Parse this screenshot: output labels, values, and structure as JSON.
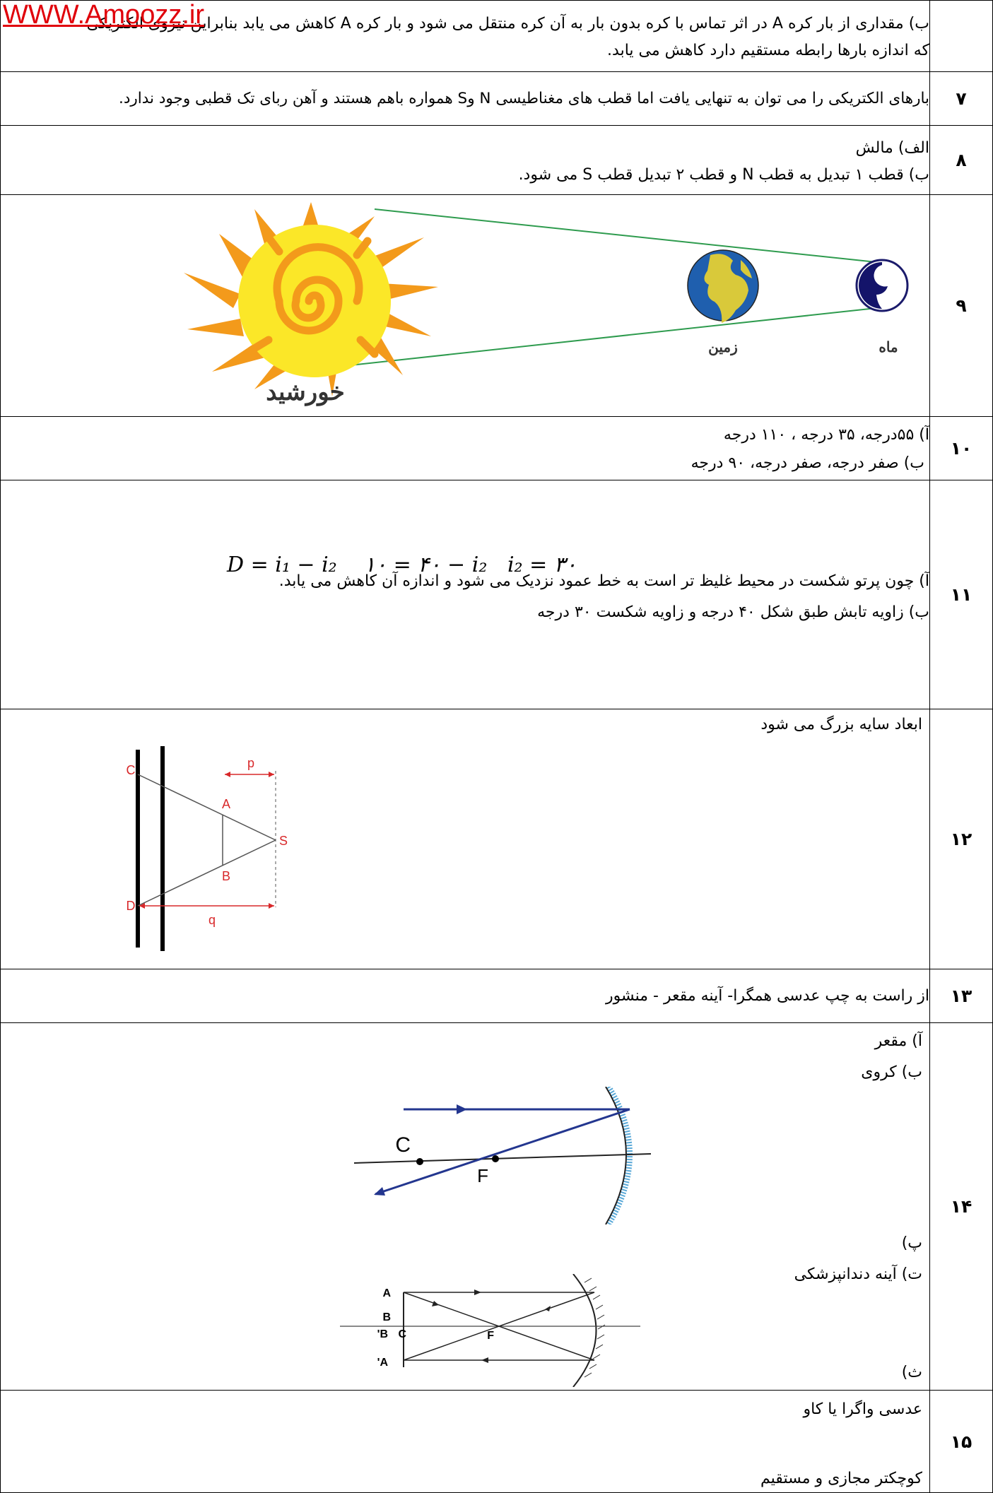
{
  "watermark": "WWW.Amoozz.ir",
  "rows": [
    {
      "num": "",
      "lines": [
        "ب) مقداری از بار کره A در اثر تماس با کره بدون بار به آن کره منتقل می شود و بار کره A کاهش می یابد بنابراین نیروی الکتریکی",
        "که اندازه بارها رابطه مستقیم دارد کاهش می یابد."
      ]
    },
    {
      "num": "۷",
      "lines": [
        "بارهای الکتریکی را می توان به تنهایی یافت اما قطب های مغناطیسی N وS  همواره باهم هستند و آهن ربای تک قطبی وجود ندارد."
      ]
    },
    {
      "num": "۸",
      "lines": [
        "الف) مالش",
        "ب) قطب ۱ تبدیل به قطب N و قطب ۲ تبدیل قطب S می شود."
      ]
    },
    {
      "num": "۹",
      "labels": {
        "sun": "خورشید",
        "earth": "زمین",
        "moon": "ماه"
      }
    },
    {
      "num": "۱۰",
      "lines": [
        "آ) ۵۵درجه، ۳۵ درجه ، ۱۱۰ درجه",
        " ب) صفر درجه، صفر درجه، ۹۰ درجه"
      ]
    },
    {
      "num": "۱۱",
      "lines": [
        "آ) چون پرتو شکست در محیط غلیظ تر است به خط عمود نزدیک می شود و اندازه آن کاهش می یابد.",
        "ب) زاویه تابش طبق شکل ۴۰ درجه و زاویه شکست ۳۰ درجه"
      ],
      "formula": "D = i₁ − i₂    ۱۰ = ۴۰ − i₂   i₂ = ۳۰"
    },
    {
      "num": "۱۲",
      "lines": [
        "ابعاد سایه بزرگ می شود"
      ],
      "labels": {
        "p": "p",
        "q": "q",
        "A": "A",
        "B": "B",
        "C": "C",
        "D": "D",
        "S": "S"
      }
    },
    {
      "num": "۱۳",
      "lines": [
        "از راست به چپ عدسی همگرا- آینه مقعر - منشور"
      ]
    },
    {
      "num": "۱۴",
      "lines": [
        "آ) مقعر",
        "ب)  کروی",
        "پ)",
        "ت) آینه دندانپزشکی",
        "ث)"
      ],
      "labels1": {
        "C": "C",
        "F": "F"
      },
      "labels2": {
        "A": "A",
        "B": "B",
        "B2": "B'",
        "C": "C",
        "F": "F",
        "A2": "A'"
      }
    },
    {
      "num": "۱۵",
      "lines": [
        "عدسی واگرا یا کاو",
        "کوچکتر مجازی و مستقیم"
      ]
    }
  ]
}
